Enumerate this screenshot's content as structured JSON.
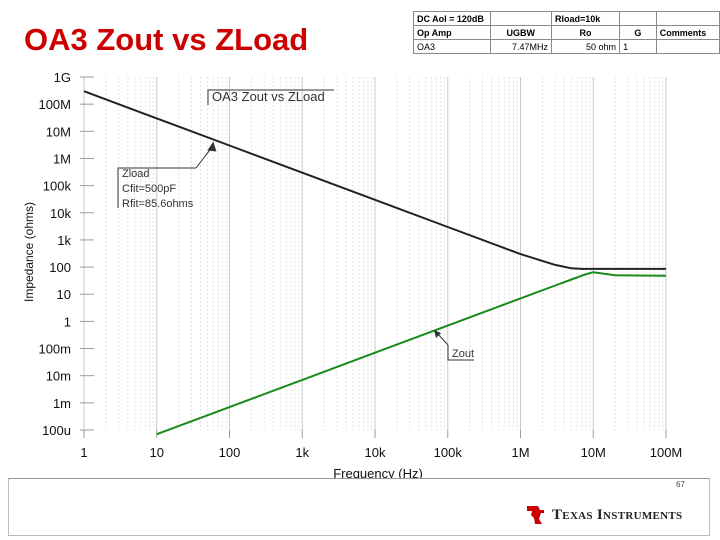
{
  "slide": {
    "title": "OA3 Zout vs ZLoad",
    "page_number": "67"
  },
  "params_table": {
    "rows": [
      [
        "DC Aol = 120dB",
        "",
        "Rload=10k",
        "",
        ""
      ],
      [
        "Op Amp",
        "UGBW",
        "Ro",
        "G",
        "Comments"
      ],
      [
        "OA3",
        "7.47MHz",
        "50 ohm",
        "1",
        ""
      ]
    ]
  },
  "footer": {
    "brand": "Texas Instruments"
  },
  "colors": {
    "title": "#cc0000",
    "zload": "#222222",
    "zout": "#1a8a1a",
    "axis_text": "#111111"
  },
  "chart_data": {
    "type": "line",
    "title": "OA3 Zout vs ZLoad",
    "xlabel": "Frequency (Hz)",
    "ylabel": "Impedance (ohms)",
    "x_scale": "log",
    "y_scale": "log",
    "xlim": [
      1,
      100000000
    ],
    "ylim": [
      0.0001,
      1000000000
    ],
    "grid": true,
    "x_ticks": [
      {
        "value": 1,
        "label": "1"
      },
      {
        "value": 10,
        "label": "10"
      },
      {
        "value": 100,
        "label": "100"
      },
      {
        "value": 1000,
        "label": "1k"
      },
      {
        "value": 10000,
        "label": "10k"
      },
      {
        "value": 100000,
        "label": "100k"
      },
      {
        "value": 1000000,
        "label": "1M"
      },
      {
        "value": 10000000,
        "label": "10M"
      },
      {
        "value": 100000000,
        "label": "100M"
      }
    ],
    "y_ticks": [
      {
        "value": 1000000000,
        "label": "1G"
      },
      {
        "value": 100000000,
        "label": "100M"
      },
      {
        "value": 10000000,
        "label": "10M"
      },
      {
        "value": 1000000,
        "label": "1M"
      },
      {
        "value": 100000,
        "label": "100k"
      },
      {
        "value": 10000,
        "label": "10k"
      },
      {
        "value": 1000,
        "label": "1k"
      },
      {
        "value": 100,
        "label": "100"
      },
      {
        "value": 10,
        "label": "10"
      },
      {
        "value": 1,
        "label": "1"
      },
      {
        "value": 0.1,
        "label": "100m"
      },
      {
        "value": 0.01,
        "label": "10m"
      },
      {
        "value": 0.001,
        "label": "1m"
      },
      {
        "value": 0.0001,
        "label": "100u"
      }
    ],
    "series": [
      {
        "name": "Zload",
        "color": "#222222",
        "x": [
          1,
          10,
          100,
          1000,
          10000,
          100000,
          1000000,
          3000000,
          5000000,
          7000000,
          10000000,
          20000000,
          100000000
        ],
        "y": [
          300000000,
          30000000,
          3000000,
          300000,
          30000,
          3000,
          300,
          120,
          90,
          86,
          85.6,
          85.6,
          85.6
        ]
      },
      {
        "name": "Zout",
        "color": "#1a8a1a",
        "x": [
          10,
          100,
          1000,
          10000,
          100000,
          1000000,
          3000000,
          5000000,
          8000000,
          10000000,
          20000000,
          100000000
        ],
        "y": [
          7e-05,
          0.0007,
          0.007,
          0.07,
          0.7,
          7,
          21,
          35,
          55,
          65,
          50,
          48
        ]
      }
    ],
    "annotations": [
      {
        "text": "OA3 Zout vs ZLoad",
        "kind": "plot-title"
      },
      {
        "lines": [
          "Zload",
          "Cfit=500pF",
          "Rfit=85.6ohms"
        ],
        "target_series": "Zload"
      },
      {
        "lines": [
          "Zout"
        ],
        "target_series": "Zout"
      }
    ]
  }
}
